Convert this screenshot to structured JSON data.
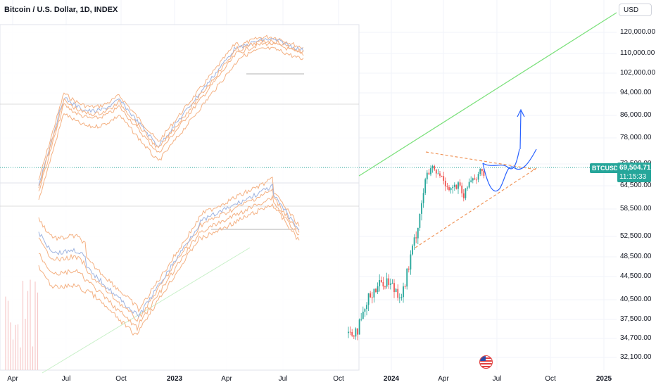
{
  "title": "Bitcoin / U.S. Dollar, 1D, INDEX",
  "currency_button": "USD",
  "symbol_tag": "BTCUSD",
  "price_tag": {
    "price": "69,504.71",
    "countdown": "11:15:33"
  },
  "colors": {
    "up": "#26a69a",
    "down": "#ef5350",
    "trendline_green": "#7ae07a",
    "dashed_orange": "#f0955a",
    "forecast_blue": "#2962ff",
    "overlay_orange": "#f4b183",
    "overlay_blue": "#9fb4e0",
    "grid": "#f0f3fa"
  },
  "chart_data": {
    "type": "candlestick",
    "title": "Bitcoin / U.S. Dollar, 1D, INDEX",
    "y_axis": {
      "scale": "log",
      "ticks": [
        120000,
        110000,
        102000,
        94000,
        86000,
        78000,
        72500,
        64500,
        58500,
        52500,
        48500,
        44500,
        40500,
        37500,
        34700,
        32100
      ],
      "tick_labels": [
        "120,000.00",
        "110,000.00",
        "102,000.00",
        "94,000.00",
        "86,000.00",
        "78,000.00",
        "72,500.00",
        "64,500.00",
        "58,500.00",
        "52,500.00",
        "48,500.00",
        "44,500.00",
        "40,500.00",
        "37,500.00",
        "34,700.00",
        "32,100.00"
      ]
    },
    "x_axis": {
      "tick_labels": [
        "Apr",
        "Jul",
        "Oct",
        "2023",
        "Apr",
        "Jul",
        "Oct",
        "2024",
        "Apr",
        "Jul",
        "Oct",
        "2025"
      ],
      "bold_labels": [
        "2023",
        "2024",
        "2025"
      ]
    },
    "last_price": 69504.71,
    "candles_summary": [
      {
        "period": "2023-11",
        "price": 36000
      },
      {
        "period": "2023-12",
        "price": 42500
      },
      {
        "period": "2024-01",
        "price": 42000
      },
      {
        "period": "2024-02",
        "price": 51500
      },
      {
        "period": "2024-03",
        "price": 70000
      },
      {
        "period": "2024-04",
        "price": 64000
      },
      {
        "period": "2024-05",
        "price": 66000
      },
      {
        "period": "2024-06",
        "price": 69500
      }
    ],
    "triangle_pattern": {
      "upper_line": [
        [
          "2024-03",
          73000
        ],
        [
          "2024-08",
          69000
        ]
      ],
      "lower_line": [
        [
          "2024-02",
          51000
        ],
        [
          "2024-08",
          68500
        ]
      ]
    },
    "long_trendline": [
      [
        "2023-10",
        64000
      ],
      [
        "2025-03",
        122000
      ]
    ],
    "projection_target": 87000
  }
}
